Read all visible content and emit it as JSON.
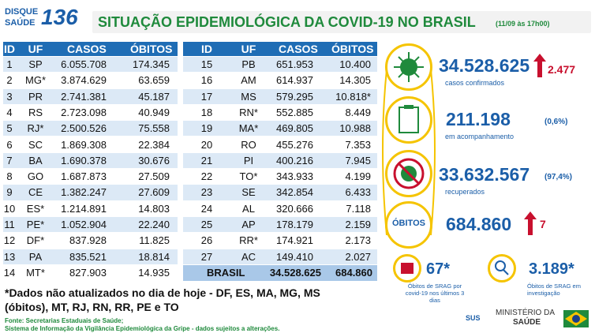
{
  "header": {
    "logo_top": "DISQUE",
    "logo_bottom": "SAÚDE",
    "logo_number": "136",
    "title": "SITUAÇÃO EPIDEMIOLÓGICA DA COVID-19 NO BRASIL",
    "date": "(11/09 às 17h00)"
  },
  "table": {
    "columns": [
      "ID",
      "UF",
      "CASOS",
      "ÓBITOS"
    ],
    "rows": [
      [
        "1",
        "SP",
        "6.055.708",
        "174.345"
      ],
      [
        "2",
        "MG*",
        "3.874.629",
        "63.659"
      ],
      [
        "3",
        "PR",
        "2.741.381",
        "45.187"
      ],
      [
        "4",
        "RS",
        "2.723.098",
        "40.949"
      ],
      [
        "5",
        "RJ*",
        "2.500.526",
        "75.558"
      ],
      [
        "6",
        "SC",
        "1.869.308",
        "22.384"
      ],
      [
        "7",
        "BA",
        "1.690.378",
        "30.676"
      ],
      [
        "8",
        "GO",
        "1.687.873",
        "27.509"
      ],
      [
        "9",
        "CE",
        "1.382.247",
        "27.609"
      ],
      [
        "10",
        "ES*",
        "1.214.891",
        "14.803"
      ],
      [
        "11",
        "PE*",
        "1.052.904",
        "22.240"
      ],
      [
        "12",
        "DF*",
        "837.928",
        "11.825"
      ],
      [
        "13",
        "PA",
        "835.521",
        "18.814"
      ],
      [
        "14",
        "MT*",
        "827.903",
        "14.935"
      ],
      [
        "15",
        "PB",
        "651.953",
        "10.400"
      ],
      [
        "16",
        "AM",
        "614.937",
        "14.305"
      ],
      [
        "17",
        "MS",
        "579.295",
        "10.818*"
      ],
      [
        "18",
        "RN*",
        "552.885",
        "8.449"
      ],
      [
        "19",
        "MA*",
        "469.805",
        "10.988"
      ],
      [
        "20",
        "RO",
        "455.276",
        "7.353"
      ],
      [
        "21",
        "PI",
        "400.216",
        "7.945"
      ],
      [
        "22",
        "TO*",
        "343.933",
        "4.199"
      ],
      [
        "23",
        "SE",
        "342.854",
        "6.433"
      ],
      [
        "24",
        "AL",
        "320.666",
        "7.118"
      ],
      [
        "25",
        "AP",
        "178.179",
        "2.159"
      ],
      [
        "26",
        "RR*",
        "174.921",
        "2.173"
      ],
      [
        "27",
        "AC",
        "149.410",
        "2.027"
      ]
    ],
    "total": {
      "label": "BRASIL",
      "cases": "34.528.625",
      "deaths": "684.860"
    }
  },
  "summary": {
    "confirmed": {
      "value": "34.528.625",
      "change": "2.477",
      "label": "casos confirmados"
    },
    "monitoring": {
      "value": "211.198",
      "percent": "(0,6%)",
      "label": "em acompanhamento"
    },
    "recovered": {
      "value": "33.632.567",
      "percent": "(97,4%)",
      "label": "recuperados"
    },
    "deaths": {
      "badge": "ÓBITOS",
      "value": "684.860",
      "change": "7"
    },
    "srag_covid": {
      "value": "67*",
      "label": "Óbitos de SRAG por covid-19 nos últimos 3 dias"
    },
    "srag_investigation": {
      "value": "3.189*",
      "label": "Óbitos de SRAG em investigação"
    }
  },
  "footer": {
    "note": "*Dados não atualizados no dia de hoje - DF, ES, MA, MG, MS (óbitos), MT, RJ, RN, RR, PE e TO",
    "source_1": "Fonte: Secretarias Estaduais de Saúde;",
    "source_2": "Sistema de Informação da Vigilância Epidemiológica da Gripe - dados sujeitos a alterações.",
    "sus": "SUS",
    "ministry_1": "MINISTÉRIO DA",
    "ministry_2": "SAÚDE"
  }
}
